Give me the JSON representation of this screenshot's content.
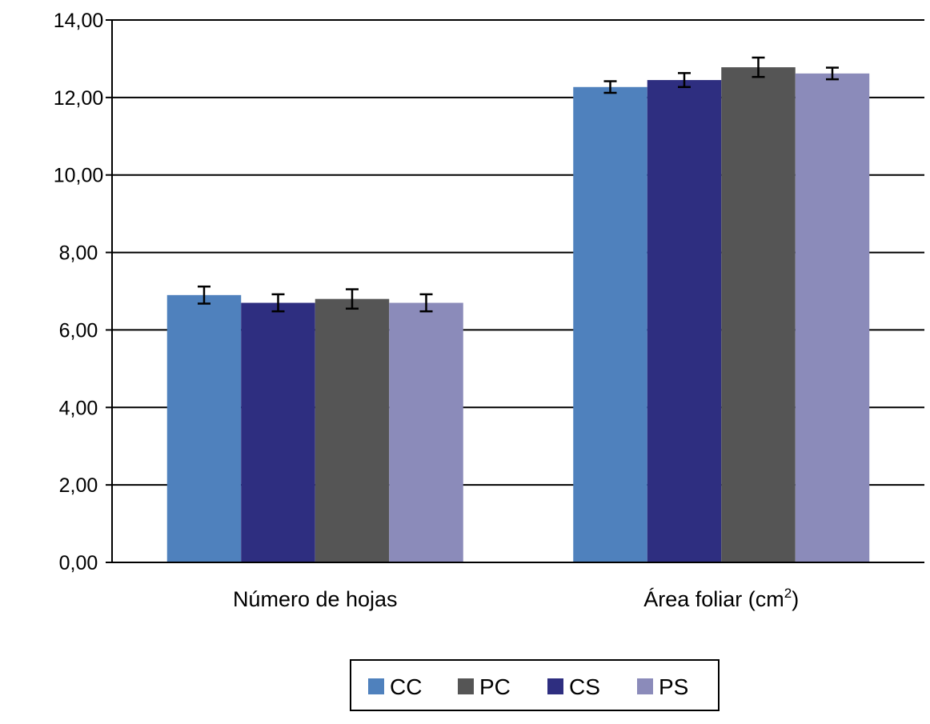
{
  "chart_data": {
    "type": "bar",
    "title": "",
    "xlabel": "",
    "ylabel": "",
    "ylim": [
      0,
      14
    ],
    "y_ticks": [
      "0,00",
      "2,00",
      "4,00",
      "6,00",
      "8,00",
      "10,00",
      "12,00",
      "14,00"
    ],
    "categories": [
      "Número de hojas",
      "Área foliar (cm"
    ],
    "category_superscripts": [
      "",
      "2"
    ],
    "category_suffix": [
      "",
      ")"
    ],
    "grid": true,
    "legend_position": "bottom",
    "series": [
      {
        "name": "CC",
        "color": "#4f81bd",
        "values": [
          6.9,
          12.27
        ],
        "errors": [
          0.22,
          0.15
        ]
      },
      {
        "name": "CS",
        "color": "#2e2e80",
        "values": [
          6.7,
          12.45
        ],
        "errors": [
          0.22,
          0.18
        ]
      },
      {
        "name": "PC",
        "color": "#555555",
        "values": [
          6.8,
          12.78
        ],
        "errors": [
          0.25,
          0.25
        ]
      },
      {
        "name": "PS",
        "color": "#8b8bba",
        "values": [
          6.7,
          12.62
        ],
        "errors": [
          0.22,
          0.15
        ]
      }
    ],
    "legend_order": [
      "CC",
      "PC",
      "CS",
      "PS"
    ]
  }
}
